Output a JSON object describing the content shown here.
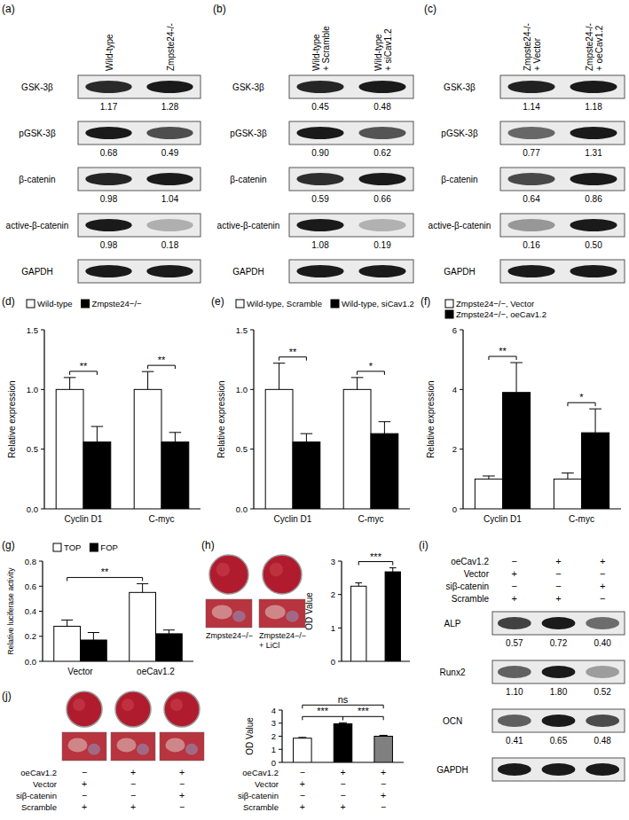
{
  "chart_data": [
    {
      "panel": "(a)",
      "type": "blot",
      "categories": [
        "Wild-type",
        "Zmpste24-/-"
      ],
      "data_labels": true,
      "loading_control": "GAPDH",
      "series": [
        {
          "name": "GSK-3β",
          "values": [
            1.17,
            1.28
          ],
          "value_labels": [
            "1.17",
            "1.28"
          ]
        },
        {
          "name": "pGSK-3β",
          "values": [
            0.68,
            0.49
          ],
          "value_labels": [
            "0.68",
            "0.49"
          ]
        },
        {
          "name": "β-catenin",
          "values": [
            0.98,
            1.04
          ],
          "value_labels": [
            "0.98",
            "1.04"
          ]
        },
        {
          "name": "active-β-catenin",
          "values": [
            0.98,
            0.18
          ],
          "value_labels": [
            "0.98",
            "0.18"
          ]
        }
      ]
    },
    {
      "panel": "(b)",
      "type": "blot",
      "categories": [
        "Wild-type + Scramble",
        "Wild-type + siCav1.2"
      ],
      "data_labels": true,
      "loading_control": "GAPDH",
      "series": [
        {
          "name": "GSK-3β",
          "values": [
            0.45,
            0.48
          ],
          "value_labels": [
            "0.45",
            "0.48"
          ]
        },
        {
          "name": "pGSK-3β",
          "values": [
            0.9,
            0.62
          ],
          "value_labels": [
            "0.90",
            "0.62"
          ]
        },
        {
          "name": "β-catenin",
          "values": [
            0.59,
            0.66
          ],
          "value_labels": [
            "0.59",
            "0.66"
          ]
        },
        {
          "name": "active-β-catenin",
          "values": [
            1.08,
            0.19
          ],
          "value_labels": [
            "1.08",
            "0.19"
          ]
        }
      ]
    },
    {
      "panel": "(c)",
      "type": "blot",
      "categories": [
        "Zmpste24-/- + Vector",
        "Zmpste24-/- + oeCav1.2"
      ],
      "data_labels": true,
      "loading_control": "GAPDH",
      "series": [
        {
          "name": "GSK-3β",
          "values": [
            1.14,
            1.18
          ],
          "value_labels": [
            "1.14",
            "1.18"
          ]
        },
        {
          "name": "pGSK-3β",
          "values": [
            0.77,
            1.31
          ],
          "value_labels": [
            "0.77",
            "1.31"
          ]
        },
        {
          "name": "β-catenin",
          "values": [
            0.64,
            0.86
          ],
          "value_labels": [
            "0.64",
            "0.86"
          ]
        },
        {
          "name": "active-β-catenin",
          "values": [
            0.16,
            0.5
          ],
          "value_labels": [
            "0.16",
            "0.50"
          ]
        }
      ]
    },
    {
      "panel": "(d)",
      "type": "bar",
      "categories": [
        "Cyclin D1",
        "C-myc"
      ],
      "y_label": "Relative expression",
      "ylim": [
        0,
        1.5
      ],
      "yticks": [
        {
          "value": 0,
          "label": "0.0"
        },
        0.5,
        {
          "value": 1,
          "label": "1.0"
        },
        1.5
      ],
      "legend": "top",
      "series": [
        {
          "name": "Wild-type",
          "color": "#ffffff",
          "values": [
            1.0,
            1.0
          ],
          "errors": [
            0.1,
            0.15
          ]
        },
        {
          "name": "Zmpste24−/−",
          "color": "#000000",
          "values": [
            0.56,
            0.56
          ],
          "errors": [
            0.13,
            0.08
          ]
        }
      ],
      "significance": [
        {
          "label": "**",
          "from": [
            0,
            0
          ],
          "to": [
            1,
            0
          ]
        },
        {
          "label": "**",
          "from": [
            0,
            1
          ],
          "to": [
            1,
            1
          ]
        }
      ]
    },
    {
      "panel": "(e)",
      "type": "bar",
      "categories": [
        "Cyclin D1",
        "C-myc"
      ],
      "y_label": "Relative expression",
      "ylim": [
        0,
        1.5
      ],
      "yticks": [
        {
          "value": 0,
          "label": "0.0"
        },
        0.5,
        {
          "value": 1,
          "label": "1.0"
        },
        1.5
      ],
      "legend": "top",
      "series": [
        {
          "name": "Wild-type, Scramble",
          "color": "#ffffff",
          "values": [
            1.0,
            1.0
          ],
          "errors": [
            0.22,
            0.1
          ]
        },
        {
          "name": "Wild-type, siCav1.2",
          "color": "#000000",
          "values": [
            0.56,
            0.63
          ],
          "errors": [
            0.07,
            0.1
          ]
        }
      ],
      "significance": [
        {
          "label": "**",
          "from": [
            0,
            0
          ],
          "to": [
            1,
            0
          ]
        },
        {
          "label": "*",
          "from": [
            0,
            1
          ],
          "to": [
            1,
            1
          ]
        }
      ]
    },
    {
      "panel": "(f)",
      "type": "bar",
      "categories": [
        "Cyclin D1",
        "C-myc"
      ],
      "y_label": "Relative expression",
      "ylim": [
        0,
        6
      ],
      "yticks": [
        0,
        2,
        4,
        6
      ],
      "legend": "top",
      "series": [
        {
          "name": "Zmpste24−/−, Vector",
          "color": "#ffffff",
          "values": [
            1.0,
            1.0
          ],
          "errors": [
            0.1,
            0.2
          ]
        },
        {
          "name": "Zmpste24−/−, oeCav1.2",
          "color": "#000000",
          "values": [
            3.9,
            2.55
          ],
          "errors": [
            1.0,
            0.8
          ]
        }
      ],
      "significance": [
        {
          "label": "**",
          "from": [
            0,
            0
          ],
          "to": [
            1,
            0
          ]
        },
        {
          "label": "*",
          "from": [
            0,
            1
          ],
          "to": [
            1,
            1
          ]
        }
      ]
    },
    {
      "panel": "(g)",
      "type": "bar",
      "categories": [
        "Vector",
        "oeCav1.2"
      ],
      "y_label": "Relative luciferase activity",
      "ylim": [
        0,
        0.8
      ],
      "yticks": [
        {
          "value": 0,
          "label": "0.0"
        },
        0.2,
        0.4,
        0.6,
        0.8
      ],
      "legend": "top",
      "series": [
        {
          "name": "TOP",
          "color": "#ffffff",
          "values": [
            0.28,
            0.55
          ],
          "errors": [
            0.05,
            0.07
          ]
        },
        {
          "name": "FOP",
          "color": "#000000",
          "values": [
            0.17,
            0.22
          ],
          "errors": [
            0.06,
            0.03
          ]
        }
      ],
      "significance": [
        {
          "label": "**",
          "from": [
            0,
            0
          ],
          "to": [
            0,
            1
          ]
        }
      ]
    },
    {
      "panel": "(h)",
      "type": "bar",
      "categories": [
        "Zmpste24−/−",
        "Zmpste24−/− + LiCl"
      ],
      "y_label": "OD Value",
      "ylim": [
        0,
        3
      ],
      "yticks": [
        0,
        1,
        2,
        3
      ],
      "tick_labels": "y",
      "values": [
        2.25,
        2.68
      ],
      "errors": [
        0.1,
        0.12
      ],
      "colors": [
        "#ffffff",
        "#000000"
      ],
      "significance": [
        {
          "label": "***",
          "from": [
            0,
            0
          ],
          "to": [
            0,
            1
          ]
        }
      ]
    },
    {
      "panel": "(i)",
      "type": "blot",
      "categories": [
        null,
        null,
        null
      ],
      "data_labels": true,
      "loading_control": "GAPDH",
      "conditions": [
        {
          "name": "oeCav1.2",
          "marks": [
            "−",
            "+",
            "+"
          ]
        },
        {
          "name": "Vector",
          "marks": [
            "+",
            "−",
            "−"
          ]
        },
        {
          "name": "siβ-catenin",
          "marks": [
            "−",
            "−",
            "+"
          ]
        },
        {
          "name": "Scramble",
          "marks": [
            "+",
            "+",
            "−"
          ]
        }
      ],
      "series": [
        {
          "name": "ALP",
          "values": [
            0.57,
            0.72,
            0.4
          ],
          "value_labels": [
            "0.57",
            "0.72",
            "0.40"
          ]
        },
        {
          "name": "Runx2",
          "values": [
            1.1,
            1.8,
            0.52
          ],
          "value_labels": [
            "1.10",
            "1.80",
            "0.52"
          ]
        },
        {
          "name": "OCN",
          "values": [
            0.41,
            0.65,
            0.48
          ],
          "value_labels": [
            "0.41",
            "0.65",
            "0.48"
          ]
        }
      ]
    },
    {
      "panel": "(j)",
      "type": "bar",
      "categories": [
        null,
        null,
        null
      ],
      "y_label": "OD Value",
      "ylim": [
        0,
        4
      ],
      "yticks": [
        0,
        1,
        2,
        3,
        4
      ],
      "tick_labels": "y",
      "values": [
        1.85,
        2.95,
        2.0
      ],
      "errors": [
        0.06,
        0.08,
        0.07
      ],
      "colors": [
        "#ffffff",
        "#000000",
        "#808080"
      ],
      "conditions": [
        {
          "name": "oeCav1.2",
          "marks": [
            "−",
            "+",
            "+"
          ]
        },
        {
          "name": "Vector",
          "marks": [
            "+",
            "−",
            "−"
          ]
        },
        {
          "name": "siβ-catenin",
          "marks": [
            "−",
            "−",
            "+"
          ]
        },
        {
          "name": "Scramble",
          "marks": [
            "+",
            "+",
            "−"
          ]
        }
      ],
      "significance": [
        {
          "label": "***",
          "from": [
            0,
            0
          ],
          "to": [
            0,
            1
          ]
        },
        {
          "label": "***",
          "from": [
            0,
            1
          ],
          "to": [
            0,
            2
          ]
        },
        {
          "label": "ns",
          "from": [
            0,
            0
          ],
          "to": [
            0,
            2
          ]
        }
      ]
    }
  ]
}
